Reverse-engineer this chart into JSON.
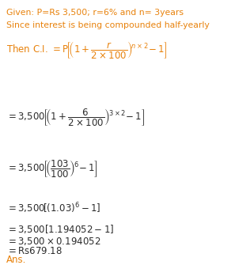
{
  "bg_color": "#ffffff",
  "orange": "#E8820C",
  "dark": "#2c2c2c",
  "figsize": [
    2.97,
    3.35
  ],
  "dpi": 100,
  "line1": "Given: P=Rs 3,500; r=6% and n= 3years",
  "line2": "Since interest is being compounded half-yearly",
  "ans": "Ans.",
  "fs_header": 7.8,
  "fs_eq": 8.5
}
